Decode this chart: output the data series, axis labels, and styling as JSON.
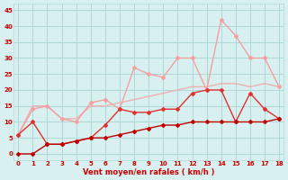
{
  "x": [
    0,
    1,
    2,
    3,
    4,
    5,
    6,
    7,
    8,
    9,
    10,
    11,
    12,
    13,
    14,
    15,
    16,
    17,
    18
  ],
  "line_light_pink": [
    6,
    14,
    15,
    11,
    10,
    16,
    17,
    14,
    27,
    25,
    24,
    30,
    30,
    20,
    42,
    37,
    30,
    30,
    21
  ],
  "line_medium_red": [
    6,
    10,
    3,
    3,
    4,
    5,
    9,
    14,
    13,
    13,
    14,
    14,
    19,
    20,
    20,
    10,
    19,
    14,
    11
  ],
  "line_trend_pink": [
    6,
    15,
    15,
    11,
    11,
    15,
    15,
    16,
    17,
    18,
    19,
    20,
    21,
    21,
    22,
    22,
    21,
    22,
    21
  ],
  "line_dark_red": [
    0,
    0,
    3,
    3,
    4,
    5,
    5,
    6,
    7,
    8,
    9,
    9,
    10,
    10,
    10,
    10,
    10,
    10,
    11
  ],
  "color_light_pink": "#f4a0a0",
  "color_medium_red": "#e03030",
  "color_trend_pink": "#f0b0b0",
  "color_dark_red": "#c00000",
  "bg_color": "#d8f0f0",
  "grid_color": "#b0d8d8",
  "xlabel": "Vent moyen/en rafales ( km/h )",
  "yticks": [
    0,
    5,
    10,
    15,
    20,
    25,
    30,
    35,
    40,
    45
  ],
  "xlim": [
    -0.3,
    18.3
  ],
  "ylim": [
    -2,
    47
  ]
}
